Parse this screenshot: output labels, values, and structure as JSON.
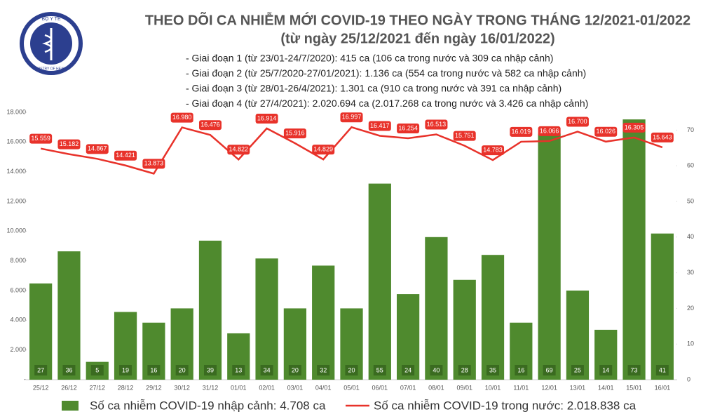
{
  "logo": {
    "top": "BỘ Y TẾ",
    "bottom": "MINISTRY OF HEALTH"
  },
  "chart_data": {
    "type": "combo",
    "title": "THEO DÕI CA NHIỄM MỚI COVID-19 THEO NGÀY TRONG THÁNG 12/2021-01/2022",
    "subtitle": "(từ ngày 25/12/2021 đến ngày 16/01/2022)",
    "notes": [
      "- Giai đoạn 1 (từ 23/01-24/7/2020): 415 ca (106 ca trong nước và 309 ca nhập cảnh)",
      "- Giai đoạn 2 (từ 25/7/2020-27/01/2021): 1.136 ca (554 ca trong nước và 582 ca nhập cảnh)",
      "- Giai đoạn 3 (từ 28/01-26/4/2021): 1.301 ca (910 ca trong nước và 391 ca nhập cảnh)",
      "- Giai đoạn 4 (từ 27/4/2021): 2.020.694 ca (2.017.268 ca trong nước và 3.426 ca nhập cảnh)"
    ],
    "categories": [
      "25/12",
      "26/12",
      "27/12",
      "28/12",
      "29/12",
      "30/12",
      "31/12",
      "01/01",
      "02/01",
      "03/01",
      "04/01",
      "05/01",
      "06/01",
      "07/01",
      "08/01",
      "09/01",
      "10/01",
      "11/01",
      "12/01",
      "13/01",
      "14/01",
      "15/01",
      "16/01"
    ],
    "series": [
      {
        "name": "Số ca nhiễm COVID-19 nhập cảnh: 4.708 ca",
        "type": "bar",
        "axis": "y2",
        "color": "#4f8a2e",
        "values": [
          27,
          36,
          5,
          19,
          16,
          20,
          39,
          13,
          34,
          20,
          32,
          20,
          55,
          24,
          40,
          28,
          35,
          16,
          69,
          25,
          14,
          73,
          41
        ]
      },
      {
        "name": "Số ca nhiễm COVID-19 trong nước: 2.018.838 ca",
        "type": "line",
        "color": "#e8322a",
        "values": [
          15559,
          15182,
          14867,
          14421,
          13873,
          16980,
          16476,
          14822,
          16914,
          15916,
          14829,
          16997,
          16417,
          16254,
          16513,
          15751,
          14783,
          16019,
          16066,
          16700,
          16026,
          16305,
          15643
        ],
        "value_labels": [
          "15.559",
          "15.182",
          "14.867",
          "14.421",
          "13.873",
          "16.980",
          "16.476",
          "14.822",
          "16.914",
          "15.916",
          "14.829",
          "16.997",
          "16.417",
          "16.254",
          "16.513",
          "15.751",
          "14.783",
          "16.019",
          "16.066",
          "16.700",
          "16.026",
          "16.305",
          "15.643"
        ]
      }
    ],
    "ylim": [
      0,
      18000
    ],
    "yticks": [
      {
        "value": 0,
        "label": "-"
      },
      {
        "value": 2000,
        "label": "2.000"
      },
      {
        "value": 4000,
        "label": "4.000"
      },
      {
        "value": 6000,
        "label": "6.000"
      },
      {
        "value": 8000,
        "label": "8.000"
      },
      {
        "value": 10000,
        "label": "10.000"
      },
      {
        "value": 12000,
        "label": "12.000"
      },
      {
        "value": 14000,
        "label": "14.000"
      },
      {
        "value": 16000,
        "label": "16.000"
      },
      {
        "value": 18000,
        "label": "18.000"
      }
    ],
    "y2lim": [
      0,
      75
    ],
    "y2ticks": [
      0,
      10,
      20,
      30,
      40,
      50,
      60,
      70
    ]
  }
}
